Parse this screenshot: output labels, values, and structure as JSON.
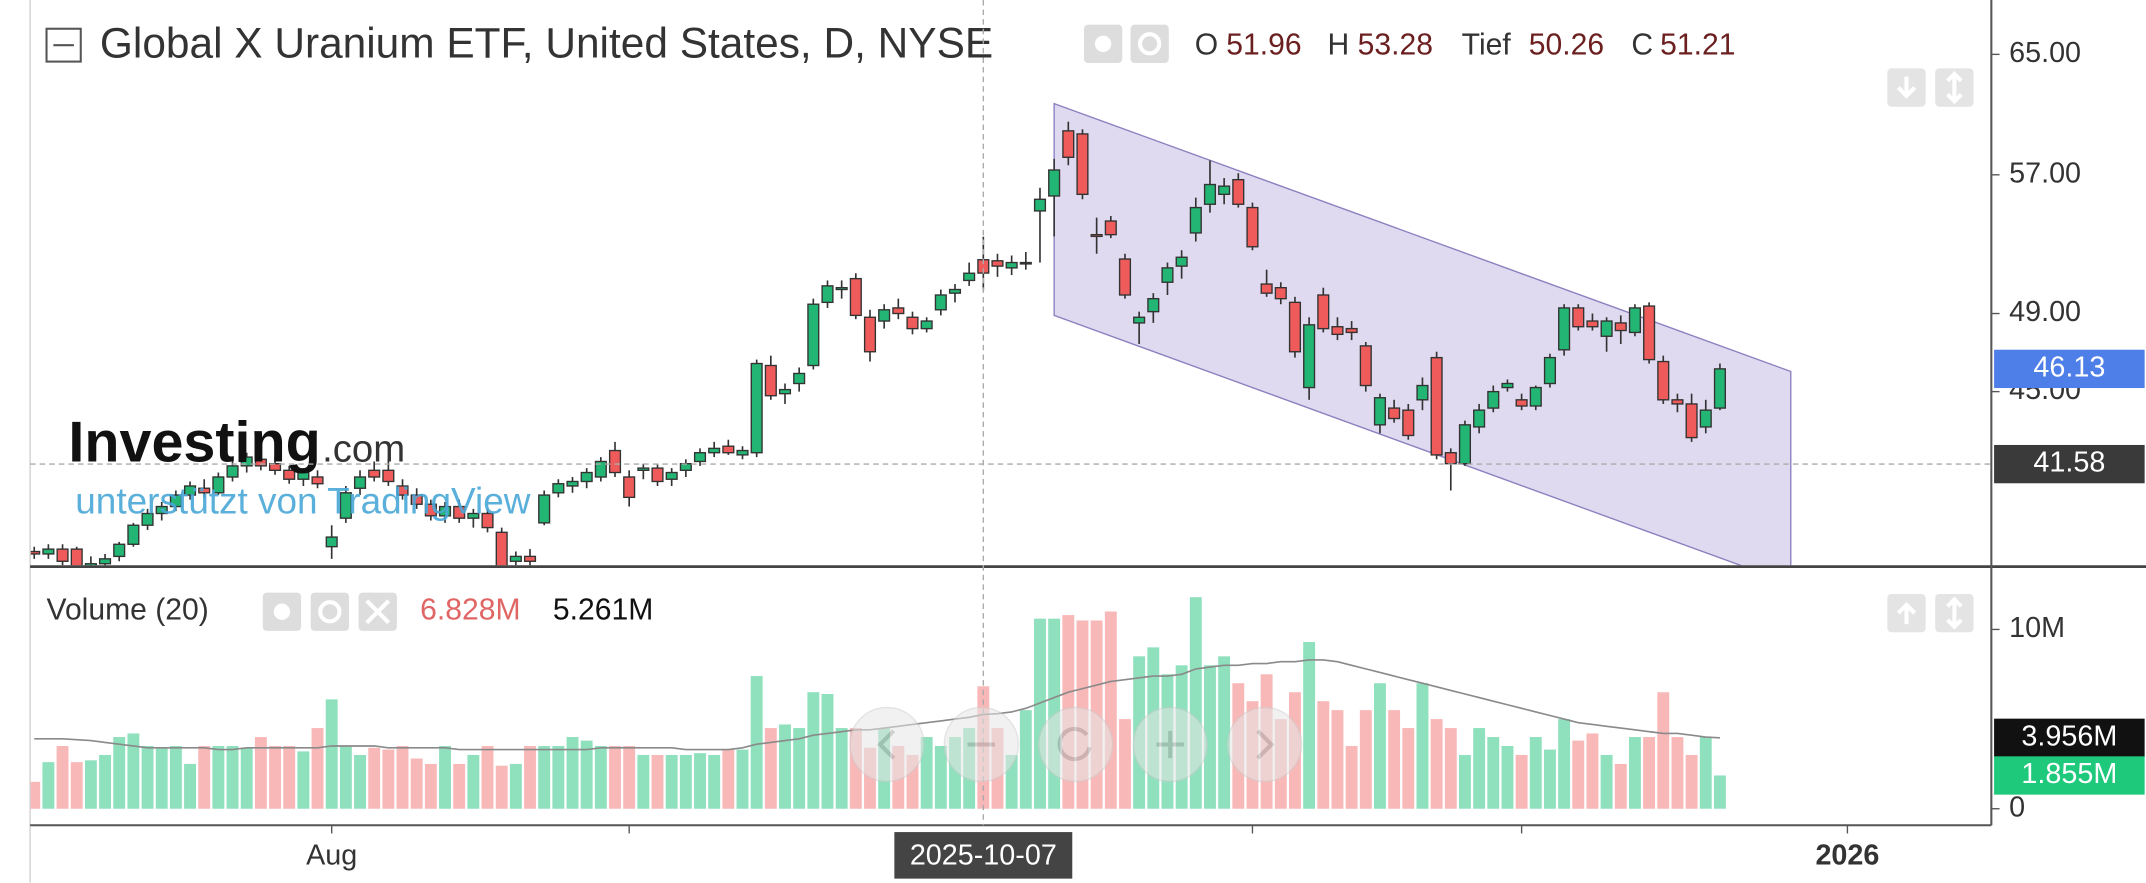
{
  "chart_data": {
    "type": "candlestick",
    "title": "Global X Uranium ETF, United States, D, NYSE",
    "ohlc_labels": [
      "O",
      "H",
      "Tief",
      "C"
    ],
    "watermark": "Investing",
    "watermark_suffix": ".com",
    "credit": "unterstützt von TradingView",
    "log_y": true,
    "ylim": [
      37.24,
      68.97
    ],
    "yticks": [
      {
        "value": 65,
        "label": "65.00"
      },
      {
        "value": 57,
        "label": "57.00"
      },
      {
        "value": 49,
        "label": "49.00"
      },
      {
        "value": 45,
        "label": "45.00"
      }
    ],
    "xlim": [
      -0.29,
      138.16
    ],
    "xticks": [
      {
        "value": 21,
        "label": "Aug"
      },
      {
        "value": 128,
        "label": "2026"
      }
    ],
    "x_minor_ticks": [
      42,
      86,
      105
    ],
    "up_color": "#22b573",
    "down_color": "#ef5b5b",
    "last_price_color": "#4e7fe8",
    "crosshair": {
      "index": 67,
      "label": "2025-10-07",
      "price": 41.58
    },
    "channel": {
      "x": [
        72,
        124
      ],
      "upper": [
        61.6,
        46.0
      ],
      "lower": [
        48.9,
        36.5
      ],
      "color": "#d9d4ec"
    },
    "candles": [
      [
        37.8,
        38.0,
        37.5,
        37.7
      ],
      [
        37.7,
        38.1,
        37.5,
        37.9
      ],
      [
        37.9,
        38.1,
        37.2,
        37.4
      ],
      [
        37.9,
        38.0,
        37.0,
        37.1
      ],
      [
        37.2,
        37.6,
        36.8,
        37.3
      ],
      [
        37.3,
        37.7,
        37.0,
        37.5
      ],
      [
        37.6,
        38.2,
        37.4,
        38.1
      ],
      [
        38.1,
        39.0,
        38.0,
        38.9
      ],
      [
        38.9,
        39.6,
        38.7,
        39.4
      ],
      [
        39.4,
        39.9,
        39.1,
        39.7
      ],
      [
        39.7,
        40.4,
        39.5,
        40.2
      ],
      [
        40.2,
        40.8,
        40.0,
        40.6
      ],
      [
        40.5,
        40.9,
        40.1,
        40.3
      ],
      [
        40.3,
        41.2,
        40.2,
        41.0
      ],
      [
        41.0,
        41.8,
        40.8,
        41.5
      ],
      [
        41.5,
        42.1,
        41.2,
        41.9
      ],
      [
        41.8,
        42.2,
        41.3,
        41.5
      ],
      [
        41.6,
        41.9,
        41.1,
        41.3
      ],
      [
        41.3,
        41.5,
        40.7,
        40.9
      ],
      [
        40.9,
        41.4,
        40.6,
        41.2
      ],
      [
        41.0,
        41.3,
        40.5,
        40.7
      ],
      [
        38.0,
        38.9,
        37.5,
        38.4
      ],
      [
        39.2,
        40.6,
        39.0,
        40.3
      ],
      [
        40.5,
        41.3,
        40.2,
        41.0
      ],
      [
        41.3,
        41.7,
        40.8,
        41.0
      ],
      [
        41.3,
        41.8,
        40.6,
        40.8
      ],
      [
        40.6,
        40.9,
        40.0,
        40.2
      ],
      [
        40.2,
        40.5,
        39.6,
        39.8
      ],
      [
        39.8,
        40.0,
        39.1,
        39.3
      ],
      [
        39.3,
        39.9,
        39.0,
        39.7
      ],
      [
        39.7,
        40.0,
        39.0,
        39.2
      ],
      [
        39.2,
        39.6,
        38.8,
        39.4
      ],
      [
        39.4,
        39.6,
        38.6,
        38.8
      ],
      [
        38.6,
        38.8,
        37.0,
        37.2
      ],
      [
        37.4,
        37.8,
        37.0,
        37.6
      ],
      [
        37.6,
        37.9,
        37.2,
        37.4
      ],
      [
        39.0,
        40.4,
        38.9,
        40.2
      ],
      [
        40.3,
        40.9,
        40.1,
        40.7
      ],
      [
        40.6,
        41.0,
        40.3,
        40.8
      ],
      [
        40.8,
        41.4,
        40.5,
        41.2
      ],
      [
        41.0,
        41.9,
        40.8,
        41.7
      ],
      [
        42.2,
        42.6,
        41.0,
        41.2
      ],
      [
        41.0,
        41.3,
        39.7,
        40.1
      ],
      [
        41.3,
        41.6,
        40.9,
        41.4
      ],
      [
        41.4,
        41.6,
        40.6,
        40.8
      ],
      [
        40.9,
        41.4,
        40.6,
        41.2
      ],
      [
        41.3,
        41.8,
        41.0,
        41.6
      ],
      [
        41.7,
        42.3,
        41.5,
        42.1
      ],
      [
        42.1,
        42.6,
        41.9,
        42.3
      ],
      [
        42.4,
        42.7,
        42.0,
        42.1
      ],
      [
        42.0,
        42.4,
        41.8,
        42.2
      ],
      [
        42.1,
        46.6,
        41.9,
        46.4
      ],
      [
        46.3,
        46.8,
        44.6,
        44.8
      ],
      [
        44.9,
        45.4,
        44.4,
        45.1
      ],
      [
        45.4,
        46.2,
        45.0,
        45.9
      ],
      [
        46.3,
        49.8,
        46.1,
        49.5
      ],
      [
        49.6,
        50.8,
        49.3,
        50.5
      ],
      [
        50.3,
        50.8,
        49.8,
        50.4
      ],
      [
        50.9,
        51.2,
        48.7,
        48.9
      ],
      [
        48.8,
        49.2,
        46.5,
        47.0
      ],
      [
        48.6,
        49.5,
        48.2,
        49.2
      ],
      [
        49.3,
        49.8,
        48.7,
        49.0
      ],
      [
        48.8,
        49.1,
        47.9,
        48.2
      ],
      [
        48.2,
        48.8,
        48.0,
        48.6
      ],
      [
        49.2,
        50.3,
        48.9,
        50.0
      ],
      [
        50.1,
        50.6,
        49.6,
        50.3
      ],
      [
        50.8,
        51.8,
        50.5,
        51.2
      ],
      [
        51.96,
        53.28,
        50.26,
        51.21
      ],
      [
        51.9,
        52.3,
        51.0,
        51.6
      ],
      [
        51.5,
        52.2,
        51.1,
        51.8
      ],
      [
        51.8,
        52.4,
        51.4,
        51.8
      ],
      [
        54.8,
        56.2,
        51.8,
        55.5
      ],
      [
        55.7,
        58.0,
        53.3,
        57.3
      ],
      [
        59.8,
        60.4,
        57.6,
        58.1
      ],
      [
        59.6,
        59.9,
        55.5,
        55.8
      ],
      [
        53.4,
        54.4,
        52.3,
        53.3
      ],
      [
        54.2,
        54.5,
        53.2,
        53.4
      ],
      [
        52.0,
        52.3,
        49.8,
        50.0
      ],
      [
        48.5,
        49.1,
        47.4,
        48.8
      ],
      [
        49.1,
        50.1,
        48.5,
        49.8
      ],
      [
        50.7,
        51.8,
        50.0,
        51.5
      ],
      [
        51.6,
        52.5,
        50.9,
        52.1
      ],
      [
        53.5,
        55.6,
        53.0,
        55.0
      ],
      [
        55.2,
        57.9,
        54.7,
        56.4
      ],
      [
        55.8,
        56.8,
        55.2,
        56.3
      ],
      [
        56.7,
        57.1,
        55.0,
        55.2
      ],
      [
        55.0,
        55.3,
        52.5,
        52.7
      ],
      [
        50.6,
        51.4,
        49.9,
        50.1
      ],
      [
        50.4,
        50.7,
        49.5,
        49.8
      ],
      [
        49.6,
        49.9,
        46.7,
        47.0
      ],
      [
        45.2,
        48.8,
        44.6,
        48.4
      ],
      [
        50.0,
        50.4,
        48.0,
        48.2
      ],
      [
        48.3,
        48.8,
        47.6,
        47.9
      ],
      [
        48.2,
        48.6,
        47.6,
        48.0
      ],
      [
        47.3,
        47.5,
        45.0,
        45.3
      ],
      [
        43.4,
        44.9,
        43.0,
        44.7
      ],
      [
        44.2,
        44.6,
        43.5,
        43.7
      ],
      [
        44.1,
        44.4,
        42.7,
        42.9
      ],
      [
        44.6,
        45.7,
        44.1,
        45.3
      ],
      [
        46.7,
        47.0,
        41.8,
        42.0
      ],
      [
        42.1,
        42.3,
        40.4,
        41.6
      ],
      [
        41.6,
        43.6,
        41.5,
        43.4
      ],
      [
        43.3,
        44.4,
        43.0,
        44.1
      ],
      [
        44.2,
        45.3,
        44.0,
        45.0
      ],
      [
        45.2,
        45.6,
        45.0,
        45.4
      ],
      [
        44.6,
        44.9,
        44.1,
        44.3
      ],
      [
        44.3,
        45.3,
        44.1,
        45.2
      ],
      [
        45.4,
        46.9,
        45.2,
        46.7
      ],
      [
        47.1,
        49.5,
        46.8,
        49.3
      ],
      [
        49.3,
        49.5,
        48.1,
        48.3
      ],
      [
        48.6,
        49.0,
        48.1,
        48.3
      ],
      [
        47.8,
        48.8,
        47.0,
        48.6
      ],
      [
        48.5,
        48.9,
        47.4,
        48.1
      ],
      [
        48.0,
        49.5,
        47.8,
        49.3
      ],
      [
        49.4,
        49.6,
        46.4,
        46.6
      ],
      [
        46.5,
        46.8,
        44.4,
        44.6
      ],
      [
        44.6,
        44.9,
        44.0,
        44.4
      ],
      [
        44.4,
        44.9,
        42.6,
        42.8
      ],
      [
        43.3,
        44.6,
        43.0,
        44.1
      ],
      [
        44.2,
        46.4,
        44.1,
        46.13
      ]
    ],
    "volume": {
      "title": "Volume (20)",
      "ylim": [
        -0.92,
        13.2
      ],
      "yticks": [
        0,
        {
          "value": 10,
          "label": "10M"
        }
      ],
      "up_color": "#8fe0bd",
      "down_color": "#f9b8b8",
      "ma_color": "#8a8a8a",
      "values": [
        1.5,
        2.6,
        3.5,
        2.6,
        2.7,
        3.0,
        4.0,
        4.2,
        3.5,
        3.4,
        3.5,
        2.5,
        3.5,
        3.5,
        3.5,
        3.4,
        4.0,
        3.5,
        3.5,
        3.2,
        4.5,
        6.1,
        3.5,
        3.0,
        3.4,
        3.3,
        3.5,
        2.8,
        2.5,
        3.5,
        2.5,
        3.0,
        3.5,
        2.4,
        2.5,
        3.5,
        3.5,
        3.5,
        4.0,
        3.8,
        3.5,
        3.5,
        3.5,
        3.0,
        3.0,
        3.0,
        3.0,
        3.1,
        3.0,
        3.3,
        3.3,
        7.4,
        4.5,
        4.7,
        4.5,
        6.5,
        6.4,
        4.5,
        4.5,
        3.4,
        4.5,
        3.5,
        3.0,
        4.0,
        3.5,
        4.0,
        4.5,
        6.828,
        4.5,
        3.0,
        5.5,
        10.6,
        10.6,
        10.8,
        10.5,
        10.5,
        11.0,
        5.0,
        8.5,
        9.0,
        7.5,
        8.0,
        11.8,
        8.0,
        8.5,
        7.0,
        6.0,
        7.5,
        5.0,
        6.5,
        9.3,
        6.0,
        5.5,
        3.5,
        5.5,
        7.0,
        5.5,
        4.5,
        7.0,
        5.0,
        4.5,
        3.0,
        4.5,
        4.0,
        3.5,
        3.0,
        4.0,
        3.3,
        5.0,
        3.8,
        4.2,
        3.0,
        2.5,
        4.0,
        4.0,
        6.5,
        4.0,
        3.0,
        4.0,
        1.855
      ],
      "value_labels": [
        null,
        null,
        null,
        null,
        null,
        null,
        null,
        null,
        null,
        null,
        null,
        null,
        null,
        null,
        null,
        null,
        null,
        null,
        null,
        null,
        null,
        null,
        null,
        null,
        null,
        null,
        null,
        null,
        null,
        null,
        null,
        null,
        null,
        null,
        null,
        null,
        null,
        null,
        null,
        null,
        null,
        null,
        null,
        null,
        null,
        null,
        null,
        null,
        null,
        null,
        null,
        null,
        null,
        null,
        null,
        null,
        null,
        null,
        null,
        null,
        null,
        null,
        null,
        null,
        null,
        null,
        null,
        "6.828M",
        null,
        null,
        null,
        null,
        null,
        null,
        null,
        null,
        null,
        null,
        null,
        null,
        null,
        null,
        null,
        null,
        null,
        null,
        null,
        null,
        null,
        null,
        null,
        null,
        null,
        null,
        null,
        null,
        null,
        null,
        null,
        null,
        null,
        null,
        null,
        null,
        null,
        null,
        null,
        null,
        null,
        null,
        null,
        null,
        null,
        null,
        null,
        null,
        null,
        null,
        null,
        "1.855M"
      ],
      "ma_values": [
        3.9,
        3.9,
        3.9,
        3.85,
        3.8,
        3.7,
        3.6,
        3.5,
        3.4,
        3.4,
        3.4,
        3.4,
        3.4,
        3.3,
        3.3,
        3.4,
        3.4,
        3.4,
        3.4,
        3.4,
        3.4,
        3.5,
        3.5,
        3.5,
        3.5,
        3.4,
        3.4,
        3.4,
        3.4,
        3.4,
        3.3,
        3.3,
        3.3,
        3.3,
        3.3,
        3.3,
        3.3,
        3.3,
        3.3,
        3.3,
        3.4,
        3.4,
        3.4,
        3.4,
        3.4,
        3.4,
        3.3,
        3.3,
        3.3,
        3.3,
        3.4,
        3.6,
        3.7,
        3.8,
        3.9,
        4.1,
        4.2,
        4.3,
        4.4,
        4.4,
        4.5,
        4.6,
        4.7,
        4.8,
        4.9,
        5.0,
        5.1,
        5.261,
        5.3,
        5.4,
        5.6,
        5.9,
        6.2,
        6.5,
        6.7,
        6.9,
        7.1,
        7.2,
        7.3,
        7.4,
        7.4,
        7.5,
        7.8,
        7.9,
        8.0,
        8.0,
        8.1,
        8.1,
        8.2,
        8.2,
        8.3,
        8.3,
        8.2,
        8.0,
        7.8,
        7.6,
        7.4,
        7.2,
        7.0,
        6.8,
        6.6,
        6.4,
        6.2,
        6.0,
        5.8,
        5.6,
        5.4,
        5.2,
        5.0,
        4.8,
        4.7,
        4.6,
        4.5,
        4.4,
        4.3,
        4.2,
        4.2,
        4.1,
        4.0,
        3.956
      ],
      "ma_value_labels": [
        null,
        null,
        null,
        null,
        null,
        null,
        null,
        null,
        null,
        null,
        null,
        null,
        null,
        null,
        null,
        null,
        null,
        null,
        null,
        null,
        null,
        null,
        null,
        null,
        null,
        null,
        null,
        null,
        null,
        null,
        null,
        null,
        null,
        null,
        null,
        null,
        null,
        null,
        null,
        null,
        null,
        null,
        null,
        null,
        null,
        null,
        null,
        null,
        null,
        null,
        null,
        null,
        null,
        null,
        null,
        null,
        null,
        null,
        null,
        null,
        null,
        null,
        null,
        null,
        null,
        null,
        null,
        "5.261M",
        null,
        null,
        null,
        null,
        null,
        null,
        null,
        null,
        null,
        null,
        null,
        null,
        null,
        null,
        null,
        null,
        null,
        null,
        null,
        null,
        null,
        null,
        null,
        null,
        null,
        null,
        null,
        null,
        null,
        null,
        null,
        null,
        null,
        null,
        null,
        null,
        null,
        null,
        null,
        null,
        null,
        null,
        null,
        null,
        null,
        null,
        null,
        null,
        null,
        null,
        null,
        "3.956M"
      ]
    }
  }
}
